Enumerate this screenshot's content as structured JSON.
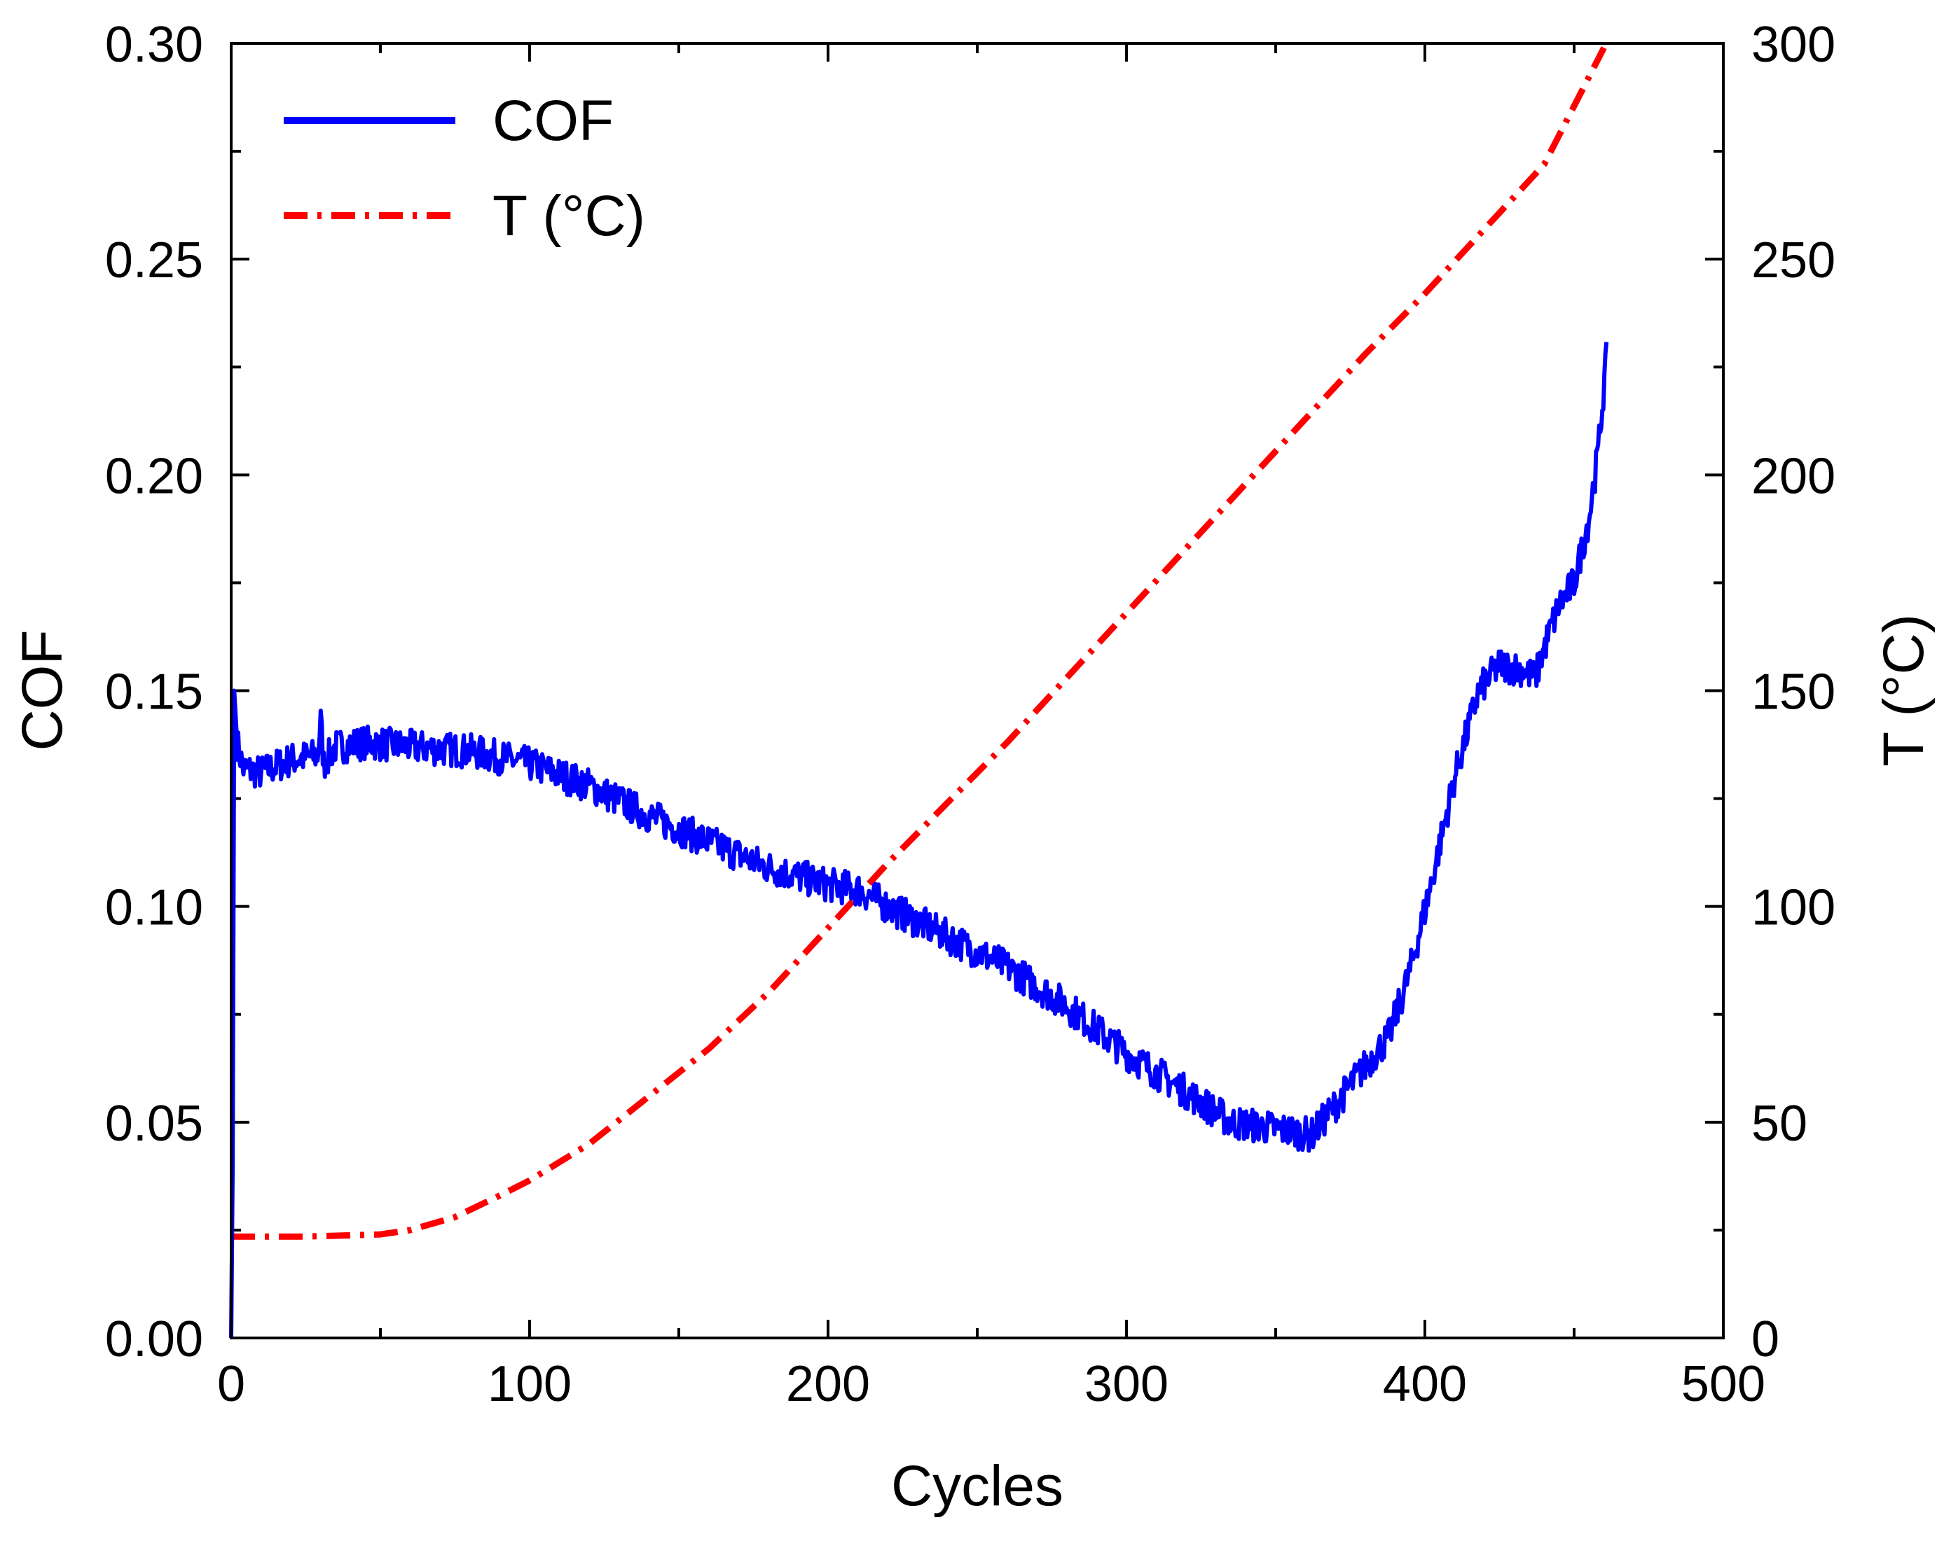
{
  "colors": {
    "cof_line": "#0000ff",
    "temp_line": "#ff0000",
    "axis": "#000000",
    "background": "#ffffff"
  },
  "chart_data": {
    "type": "line",
    "title": "",
    "xlabel": "Cycles",
    "ylabel": "COF",
    "y2label": "T (°C)",
    "xlim": [
      0,
      500
    ],
    "ylim": [
      0,
      0.3
    ],
    "y2lim": [
      0,
      300
    ],
    "x_ticks": [
      0,
      100,
      200,
      300,
      400,
      500
    ],
    "x_tick_labels": [
      "0",
      "100",
      "200",
      "300",
      "400",
      "500"
    ],
    "y_ticks": [
      0,
      0.05,
      0.1,
      0.15,
      0.2,
      0.25,
      0.3
    ],
    "y_tick_labels": [
      "0.00",
      "0.05",
      "0.10",
      "0.15",
      "0.20",
      "0.25",
      "0.30"
    ],
    "y2_ticks": [
      0,
      50,
      100,
      150,
      200,
      250,
      300
    ],
    "y2_tick_labels": [
      "0",
      "50",
      "100",
      "150",
      "200",
      "250",
      "300"
    ],
    "grid": false,
    "legend_position": "top-left",
    "series": [
      {
        "name": "COF",
        "axis": "left",
        "style": "solid",
        "noise_band": 0.004,
        "points": [
          [
            0,
            0.0
          ],
          [
            0.5,
            0.04
          ],
          [
            1,
            0.15
          ],
          [
            2,
            0.138
          ],
          [
            4,
            0.132
          ],
          [
            10,
            0.131
          ],
          [
            20,
            0.134
          ],
          [
            29,
            0.135
          ],
          [
            30,
            0.143
          ],
          [
            31,
            0.133
          ],
          [
            35,
            0.137
          ],
          [
            45,
            0.138
          ],
          [
            60,
            0.137
          ],
          [
            80,
            0.136
          ],
          [
            100,
            0.133
          ],
          [
            120,
            0.128
          ],
          [
            140,
            0.121
          ],
          [
            160,
            0.115
          ],
          [
            180,
            0.109
          ],
          [
            200,
            0.105
          ],
          [
            210,
            0.104
          ],
          [
            220,
            0.1
          ],
          [
            240,
            0.093
          ],
          [
            260,
            0.086
          ],
          [
            280,
            0.077
          ],
          [
            300,
            0.066
          ],
          [
            320,
            0.057
          ],
          [
            335,
            0.05
          ],
          [
            345,
            0.049
          ],
          [
            355,
            0.048
          ],
          [
            362,
            0.047
          ],
          [
            370,
            0.054
          ],
          [
            380,
            0.063
          ],
          [
            388,
            0.07
          ],
          [
            395,
            0.085
          ],
          [
            402,
            0.105
          ],
          [
            410,
            0.13
          ],
          [
            418,
            0.15
          ],
          [
            425,
            0.156
          ],
          [
            432,
            0.155
          ],
          [
            437,
            0.153
          ],
          [
            440,
            0.16
          ],
          [
            445,
            0.17
          ],
          [
            450,
            0.175
          ],
          [
            455,
            0.19
          ],
          [
            458,
            0.205
          ],
          [
            461,
            0.228
          ]
        ]
      },
      {
        "name": "T (°C)",
        "axis": "right",
        "style": "dash-dot",
        "points": [
          [
            0,
            23.5
          ],
          [
            25,
            23.5
          ],
          [
            50,
            24
          ],
          [
            60,
            25
          ],
          [
            75,
            28
          ],
          [
            90,
            33
          ],
          [
            100,
            36.5
          ],
          [
            120,
            45
          ],
          [
            140,
            56
          ],
          [
            160,
            67
          ],
          [
            180,
            80
          ],
          [
            200,
            95
          ],
          [
            220,
            110
          ],
          [
            240,
            124
          ],
          [
            260,
            138
          ],
          [
            280,
            153
          ],
          [
            300,
            168
          ],
          [
            320,
            183
          ],
          [
            340,
            198
          ],
          [
            360,
            213
          ],
          [
            380,
            228
          ],
          [
            400,
            242
          ],
          [
            420,
            257
          ],
          [
            440,
            272
          ],
          [
            460,
            299
          ]
        ]
      }
    ]
  }
}
